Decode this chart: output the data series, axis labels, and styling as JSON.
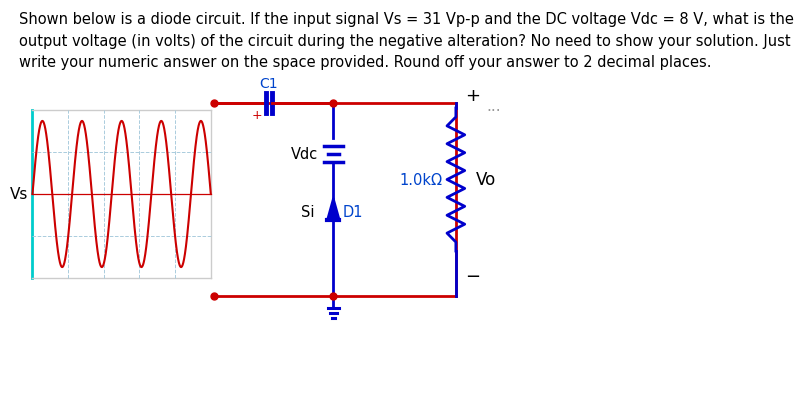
{
  "title_text": "Shown below is a diode circuit. If the input signal Vs = 31 Vp-p and the DC voltage Vdc = 8 V, what is the\noutput voltage (in volts) of the circuit during the negative alteration? No need to show your solution. Just\nwrite your numeric answer on the space provided. Round off your answer to 2 decimal places.",
  "title_fontsize": 10.5,
  "bg_color": "#ffffff",
  "red": "#cc0000",
  "blue": "#0000cc",
  "text_blue": "#0044cc",
  "black": "#000000",
  "grid_color": "#aaccdd",
  "osc_border": "#88bbcc",
  "ellipsis": "...",
  "label_C1": "C1",
  "label_Vdc": "Vdc",
  "label_Si": "Si",
  "label_D1": "D1",
  "label_R": "1.0kΩ",
  "label_Vo": "Vo",
  "label_Vs": "Vs",
  "label_plus_cap": "+",
  "label_plus_right": "+",
  "label_minus_right": "−"
}
